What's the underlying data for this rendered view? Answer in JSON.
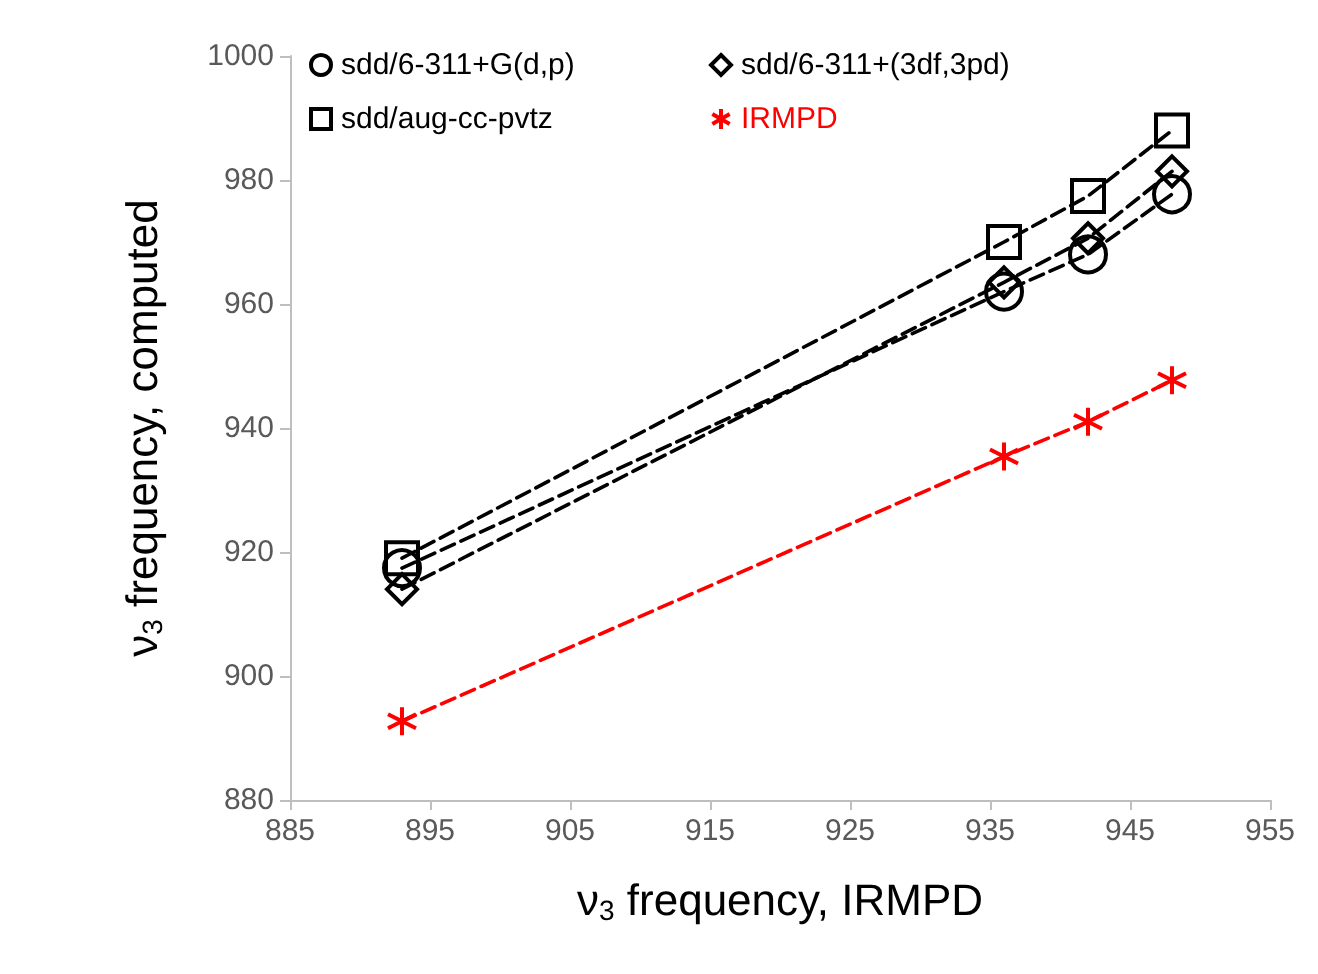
{
  "chart_data": {
    "type": "line",
    "xlabel": "ν$_{3}$ frequency, IRMPD",
    "ylabel": "ν$_{3}$ frequency, computed",
    "xlim": [
      885,
      955
    ],
    "xticks": [
      885,
      895,
      905,
      915,
      925,
      935,
      945,
      955
    ],
    "ylim": [
      880,
      1000
    ],
    "yticks": [
      880,
      900,
      920,
      940,
      960,
      980,
      1000
    ],
    "grid": false,
    "legend": "top left",
    "line_style": "dashed",
    "series": [
      {
        "name": "sdd/6-311+G(d,p)",
        "color": "#000000",
        "marker": "circle",
        "x": [
          893,
          936,
          942,
          948
        ],
        "values": [
          917.4,
          962,
          968,
          977.7
        ]
      },
      {
        "name": "sdd/6-311+(3df,3pd)",
        "color": "#000000",
        "marker": "diamond",
        "x": [
          893,
          936,
          942,
          948
        ],
        "values": [
          914,
          963.5,
          970.6,
          981.4
        ]
      },
      {
        "name": "sdd/aug-cc-pvtz",
        "color": "#000000",
        "marker": "square",
        "x": [
          893,
          936,
          942,
          948
        ],
        "values": [
          919,
          970,
          977.4,
          988
        ]
      },
      {
        "name": "IRMPD",
        "color": "#ff0000",
        "marker": "cross",
        "x": [
          893,
          936,
          942,
          948
        ],
        "values": [
          892.7,
          935.4,
          941,
          947.7
        ]
      }
    ]
  }
}
